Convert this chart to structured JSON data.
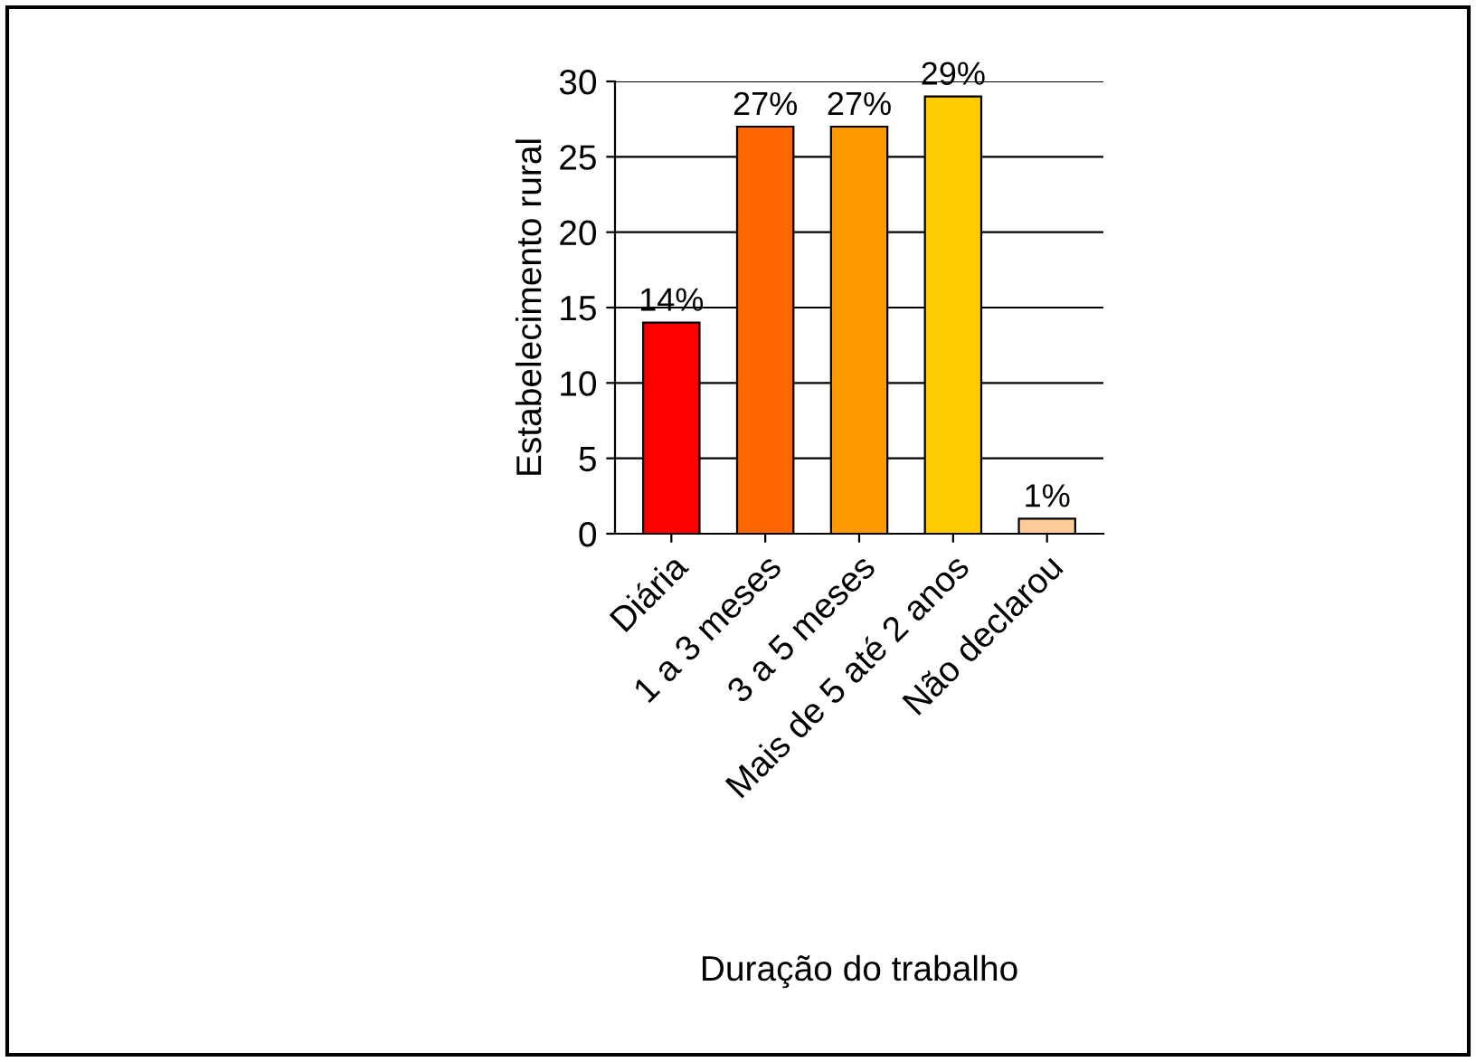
{
  "chart_data": {
    "type": "bar",
    "xlabel": "Duração do trabalho",
    "ylabel": "Estabelecimento rural",
    "categories": [
      "Diária",
      "1 a 3 meses",
      "3 a 5 meses",
      "Mais de 5 até 2 anos",
      "Não declarou"
    ],
    "values": [
      14,
      27,
      27,
      29,
      1
    ],
    "colors": [
      "#ff0000",
      "#ff6600",
      "#ff9900",
      "#ffcc00",
      "#ffcc99"
    ],
    "value_labels": [
      "14%",
      "27%",
      "27%",
      "29%",
      "1%"
    ],
    "ylim": [
      0,
      30
    ],
    "yticks": [
      0,
      5,
      10,
      15,
      20,
      25,
      30
    ],
    "grid": "y",
    "legend": false
  }
}
